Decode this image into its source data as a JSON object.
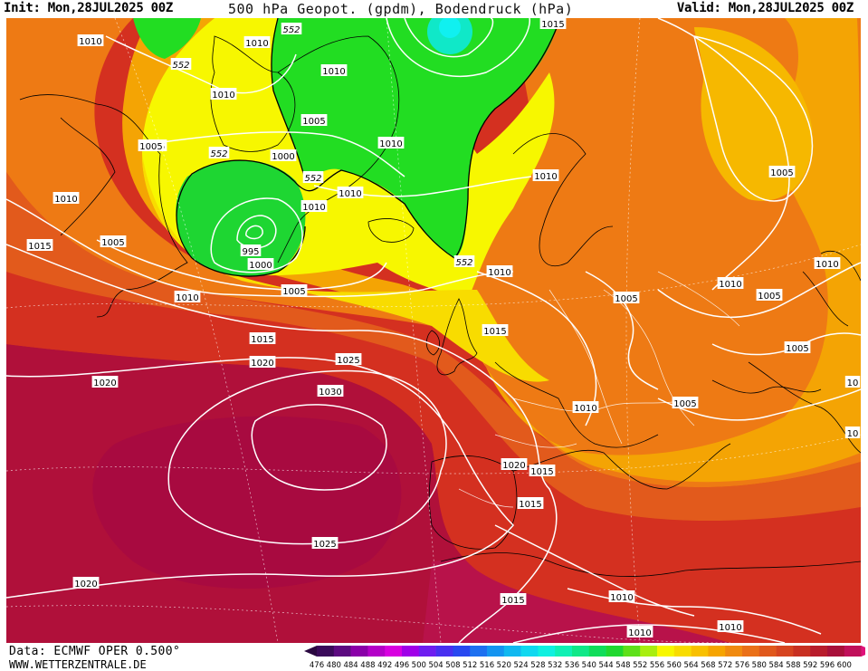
{
  "header": {
    "init": "Init: Mon,28JUL2025 00Z",
    "title": "500 hPa Geopot. (gpdm), Bodendruck (hPa)",
    "valid": "Valid: Mon,28JUL2025 00Z"
  },
  "footer": {
    "source": "Data: ECMWF OPER 0.500°",
    "website": "WWW.WETTERZENTRALE.DE"
  },
  "colors": {
    "green": "#22dd22",
    "yellow": "#f7f700",
    "orange": "#f08a10",
    "red": "#d43020",
    "crimson": "#b0103a"
  },
  "scale": {
    "values": [
      "476",
      "480",
      "484",
      "488",
      "492",
      "496",
      "500",
      "504",
      "508",
      "512",
      "516",
      "520",
      "524",
      "528",
      "532",
      "536",
      "540",
      "544",
      "548",
      "552",
      "556",
      "560",
      "564",
      "568",
      "572",
      "576",
      "580",
      "584",
      "588",
      "592",
      "596",
      "600"
    ],
    "colors": [
      "#3a0a5a",
      "#5c0a80",
      "#8a00a8",
      "#b400c8",
      "#d800e0",
      "#a000e8",
      "#6e1ef0",
      "#4830f0",
      "#2848f0",
      "#1d70f0",
      "#1494f0",
      "#10b8f0",
      "#10d8f0",
      "#10f0e0",
      "#10f0b4",
      "#10e888",
      "#10dd5a",
      "#20d830",
      "#5ee01a",
      "#a8ee10",
      "#f7f700",
      "#f8dc00",
      "#f8c000",
      "#f6a400",
      "#f08a10",
      "#ea7018",
      "#e0581c",
      "#d64420",
      "#c83022",
      "#b81c2c",
      "#a8103a",
      "#c0105a"
    ]
  },
  "pressure_labels": [
    {
      "id": "p1",
      "text": "1010"
    },
    {
      "id": "p2",
      "text": "1010"
    },
    {
      "id": "p3",
      "text": "1010"
    },
    {
      "id": "p4",
      "text": "1005"
    },
    {
      "id": "p5",
      "text": "1000"
    },
    {
      "id": "p6",
      "text": "1010"
    },
    {
      "id": "p7",
      "text": "1010"
    },
    {
      "id": "p8",
      "text": "1005"
    },
    {
      "id": "p9",
      "text": "1010"
    },
    {
      "id": "p10",
      "text": "1010"
    },
    {
      "id": "p11",
      "text": "1015"
    },
    {
      "id": "p12",
      "text": "1005"
    },
    {
      "id": "p13",
      "text": "995"
    },
    {
      "id": "p14",
      "text": "1000"
    },
    {
      "id": "p15",
      "text": "1010"
    },
    {
      "id": "p16",
      "text": "1005"
    },
    {
      "id": "p17",
      "text": "1015"
    },
    {
      "id": "p18",
      "text": "1020"
    },
    {
      "id": "p19",
      "text": "1025"
    },
    {
      "id": "p20",
      "text": "1030"
    },
    {
      "id": "p21",
      "text": "1020"
    },
    {
      "id": "p22",
      "text": "1010"
    },
    {
      "id": "p23",
      "text": "1015"
    },
    {
      "id": "p24",
      "text": "1010"
    },
    {
      "id": "p25",
      "text": "1005"
    },
    {
      "id": "p26",
      "text": "1010"
    },
    {
      "id": "p27",
      "text": "1005"
    },
    {
      "id": "p28",
      "text": "1010"
    },
    {
      "id": "p29",
      "text": "1005"
    },
    {
      "id": "p30",
      "text": "1005"
    },
    {
      "id": "p31",
      "text": "1010"
    },
    {
      "id": "p32",
      "text": "1005"
    },
    {
      "id": "p33",
      "text": "1020"
    },
    {
      "id": "p34",
      "text": "1015"
    },
    {
      "id": "p35",
      "text": "1015"
    },
    {
      "id": "p36",
      "text": "1025"
    },
    {
      "id": "p37",
      "text": "1020"
    },
    {
      "id": "p38",
      "text": "1015"
    },
    {
      "id": "p39",
      "text": "1010"
    },
    {
      "id": "p40",
      "text": "1010"
    },
    {
      "id": "p41",
      "text": "1010"
    },
    {
      "id": "p42",
      "text": "1010"
    },
    {
      "id": "p43",
      "text": "1005"
    }
  ],
  "geopotential_labels": [
    {
      "id": "g1",
      "text": "552"
    },
    {
      "id": "g2",
      "text": "552"
    },
    {
      "id": "g3",
      "text": "552"
    },
    {
      "id": "g4",
      "text": "552"
    },
    {
      "id": "g5",
      "text": "552"
    }
  ],
  "partial_labels": [
    "1015",
    "10",
    "10"
  ]
}
